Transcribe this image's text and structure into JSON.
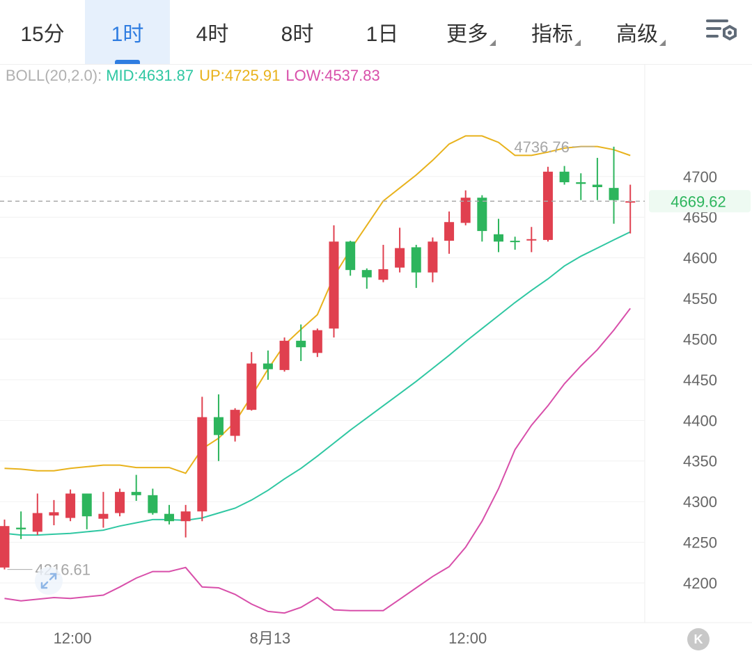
{
  "tabs": [
    {
      "label": "15分",
      "active": false,
      "dropdown": false
    },
    {
      "label": "1时",
      "active": true,
      "dropdown": false
    },
    {
      "label": "4时",
      "active": false,
      "dropdown": false
    },
    {
      "label": "8时",
      "active": false,
      "dropdown": false
    },
    {
      "label": "1日",
      "active": false,
      "dropdown": false
    },
    {
      "label": "更多",
      "active": false,
      "dropdown": true
    },
    {
      "label": "指标",
      "active": false,
      "dropdown": true
    },
    {
      "label": "高级",
      "active": false,
      "dropdown": true
    }
  ],
  "settings_icon": "chart-settings-icon",
  "indicator": {
    "label": "BOLL(20,2.0):",
    "mid": "MID:4631.87",
    "up": "UP:4725.91",
    "low": "LOW:4537.83"
  },
  "colors": {
    "up_candle": "#e0404f",
    "down_candle": "#2db55d",
    "mid_line": "#2fc7a2",
    "upper_line": "#e8b21c",
    "lower_line": "#d84faa",
    "price_tag": "#2db55d",
    "accent": "#2f7de1"
  },
  "back_button_label": "K",
  "chart_data": {
    "type": "candlestick",
    "ylim": [
      4150,
      4800
    ],
    "y_ticks": [
      "4200",
      "4250",
      "4300",
      "4350",
      "4400",
      "4450",
      "4500",
      "4550",
      "4600",
      "4650",
      "4700"
    ],
    "x_ticks": [
      {
        "label": "12:00",
        "index": 4
      },
      {
        "label": "8月13",
        "index": 16
      },
      {
        "label": "12:00",
        "index": 28
      }
    ],
    "current_price": 4669.62,
    "max_label": "4736.76",
    "max_index": 36,
    "min_label": "4216.61",
    "min_index": 0,
    "candles": [
      {
        "o": 4219,
        "h": 4278,
        "l": 4216.61,
        "c": 4270
      },
      {
        "o": 4268,
        "h": 4288,
        "l": 4254,
        "c": 4266
      },
      {
        "o": 4263,
        "h": 4310,
        "l": 4259,
        "c": 4286
      },
      {
        "o": 4283,
        "h": 4302,
        "l": 4271,
        "c": 4287
      },
      {
        "o": 4280,
        "h": 4315,
        "l": 4276,
        "c": 4310
      },
      {
        "o": 4310,
        "h": 4310,
        "l": 4266,
        "c": 4282
      },
      {
        "o": 4279,
        "h": 4312,
        "l": 4268,
        "c": 4285
      },
      {
        "o": 4286,
        "h": 4316,
        "l": 4282,
        "c": 4312
      },
      {
        "o": 4312,
        "h": 4333,
        "l": 4301,
        "c": 4308
      },
      {
        "o": 4308,
        "h": 4316,
        "l": 4284,
        "c": 4286
      },
      {
        "o": 4285,
        "h": 4296,
        "l": 4272,
        "c": 4276
      },
      {
        "o": 4276,
        "h": 4296,
        "l": 4256,
        "c": 4288
      },
      {
        "o": 4288,
        "h": 4429,
        "l": 4276,
        "c": 4404
      },
      {
        "o": 4404,
        "h": 4432,
        "l": 4350,
        "c": 4382
      },
      {
        "o": 4381,
        "h": 4415,
        "l": 4374,
        "c": 4413
      },
      {
        "o": 4413,
        "h": 4484,
        "l": 4412,
        "c": 4470
      },
      {
        "o": 4470,
        "h": 4486,
        "l": 4450,
        "c": 4463
      },
      {
        "o": 4462,
        "h": 4502,
        "l": 4460,
        "c": 4498
      },
      {
        "o": 4498,
        "h": 4518,
        "l": 4473,
        "c": 4490
      },
      {
        "o": 4483,
        "h": 4513,
        "l": 4478,
        "c": 4511
      },
      {
        "o": 4513,
        "h": 4640,
        "l": 4502,
        "c": 4620
      },
      {
        "o": 4620,
        "h": 4621,
        "l": 4578,
        "c": 4585
      },
      {
        "o": 4585,
        "h": 4587,
        "l": 4562,
        "c": 4576
      },
      {
        "o": 4573,
        "h": 4616,
        "l": 4570,
        "c": 4586
      },
      {
        "o": 4588,
        "h": 4637,
        "l": 4582,
        "c": 4612
      },
      {
        "o": 4613,
        "h": 4616,
        "l": 4563,
        "c": 4582
      },
      {
        "o": 4582,
        "h": 4625,
        "l": 4570,
        "c": 4620
      },
      {
        "o": 4621,
        "h": 4657,
        "l": 4605,
        "c": 4644
      },
      {
        "o": 4643,
        "h": 4683,
        "l": 4640,
        "c": 4674
      },
      {
        "o": 4674,
        "h": 4677,
        "l": 4620,
        "c": 4633
      },
      {
        "o": 4629,
        "h": 4648,
        "l": 4607,
        "c": 4620
      },
      {
        "o": 4621,
        "h": 4626,
        "l": 4610,
        "c": 4620
      },
      {
        "o": 4622,
        "h": 4638,
        "l": 4607,
        "c": 4623
      },
      {
        "o": 4622,
        "h": 4712,
        "l": 4620,
        "c": 4706
      },
      {
        "o": 4706,
        "h": 4713,
        "l": 4690,
        "c": 4693
      },
      {
        "o": 4693,
        "h": 4704,
        "l": 4671,
        "c": 4691
      },
      {
        "o": 4690,
        "h": 4723,
        "l": 4671,
        "c": 4687
      },
      {
        "o": 4686,
        "h": 4736.76,
        "l": 4642,
        "c": 4671
      },
      {
        "o": 4669.62,
        "h": 4690,
        "l": 4630,
        "c": 4669.62
      }
    ],
    "boll": {
      "upper": [
        4341,
        4340,
        4338,
        4338,
        4341,
        4343,
        4345,
        4345,
        4342,
        4342,
        4342,
        4335,
        4365,
        4378,
        4398,
        4430,
        4463,
        4493,
        4512,
        4530,
        4577,
        4610,
        4640,
        4670,
        4686,
        4702,
        4720,
        4740,
        4750,
        4750,
        4742,
        4726,
        4726,
        4730,
        4735,
        4737,
        4737,
        4733,
        4725.91
      ],
      "mid": [
        4261,
        4259,
        4259,
        4260,
        4261,
        4263,
        4265,
        4270,
        4274,
        4278,
        4278,
        4277,
        4280,
        4286,
        4292,
        4302,
        4314,
        4328,
        4341,
        4356,
        4372,
        4388,
        4403,
        4418,
        4433,
        4448,
        4464,
        4480,
        4497,
        4513,
        4529,
        4545,
        4560,
        4574,
        4590,
        4602,
        4612,
        4622,
        4631.87
      ]
    }
  }
}
